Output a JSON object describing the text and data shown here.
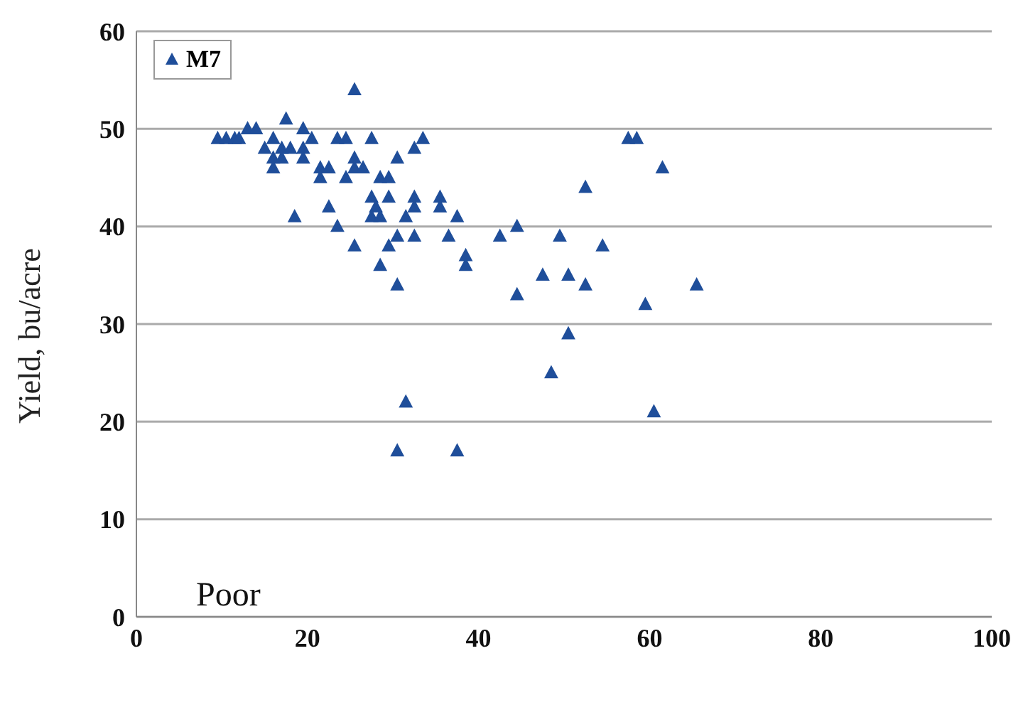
{
  "chart_data": {
    "type": "scatter",
    "ylabel": "Yield, bu/acre",
    "xlim": [
      0,
      100
    ],
    "xticks": [
      0,
      20,
      40,
      60,
      80,
      100
    ],
    "ylim": [
      0,
      60
    ],
    "yticks": [
      0,
      10,
      20,
      30,
      40,
      50,
      60
    ],
    "grid": "y",
    "legend": "top left",
    "marker": "triangle",
    "annotations": [
      "Poor"
    ],
    "series": [
      {
        "name": "M7",
        "color": "#1f4e9a",
        "x": [
          9.5,
          10.5,
          11.5,
          12,
          13,
          14,
          15,
          16,
          16,
          16,
          17,
          17,
          17.5,
          18,
          18.5,
          19.5,
          19.5,
          19.5,
          20.5,
          21.5,
          21.5,
          22.5,
          22.5,
          23.5,
          23.5,
          24.5,
          24.5,
          25.5,
          25.5,
          25.5,
          25.5,
          26.5,
          27.5,
          27.5,
          27.5,
          28,
          28.5,
          28.5,
          28.5,
          29.5,
          29.5,
          29.5,
          30.5,
          30.5,
          30.5,
          31.5,
          31.5,
          30.5,
          32.5,
          32.5,
          32.5,
          32.5,
          33.5,
          35.5,
          35.5,
          36.5,
          37.5,
          37.5,
          38.5,
          38.5,
          42.5,
          44.5,
          44.5,
          47.5,
          48.5,
          49.5,
          50.5,
          50.5,
          52.5,
          52.5,
          54.5,
          57.5,
          58.5,
          59.5,
          60.5,
          61.5,
          65.5
        ],
        "values": [
          49,
          49,
          49,
          49,
          50,
          50,
          48,
          49,
          47,
          46,
          48,
          47,
          51,
          48,
          41,
          50,
          47,
          48,
          49,
          46,
          45,
          46,
          42,
          40,
          49,
          49,
          45,
          54,
          47,
          46,
          38,
          46,
          49,
          43,
          41,
          42,
          45,
          41,
          36,
          45,
          43,
          38,
          47,
          39,
          34,
          41,
          22,
          17,
          48,
          43,
          42,
          39,
          49,
          43,
          42,
          39,
          41,
          17,
          37,
          36,
          39,
          40,
          33,
          35,
          25,
          39,
          35,
          29,
          44,
          34,
          38,
          49,
          49,
          32,
          21,
          46,
          34
        ]
      }
    ]
  }
}
